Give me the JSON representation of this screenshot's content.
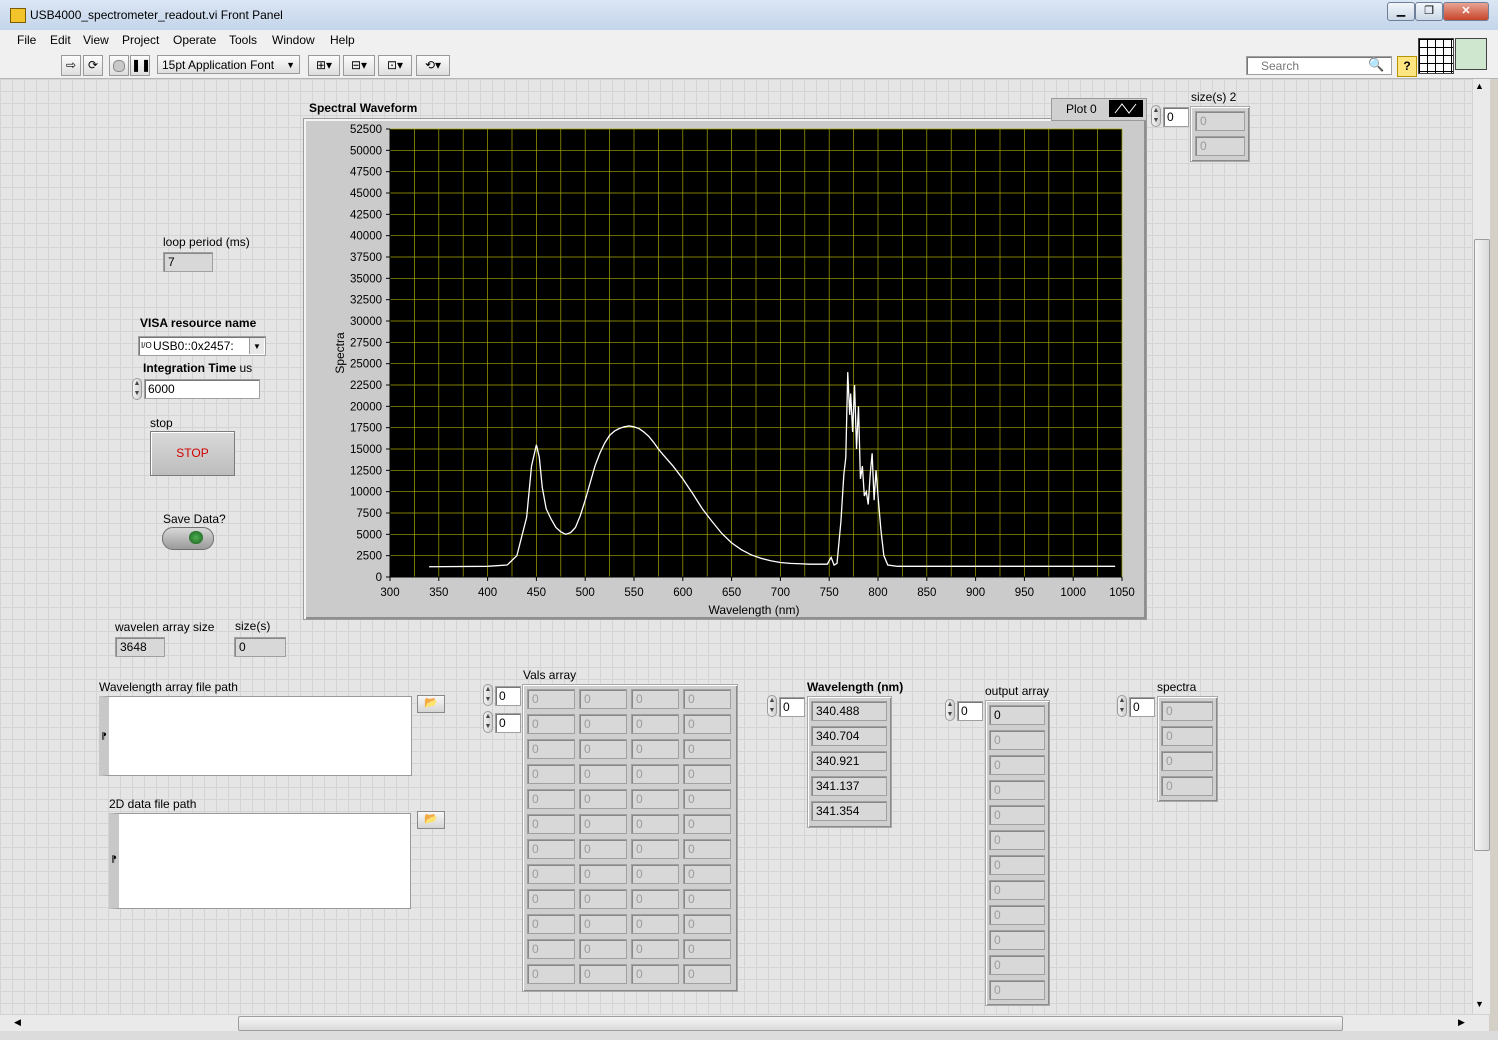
{
  "window": {
    "title": "USB4000_spectrometer_readout.vi Front Panel",
    "minimize": "▁",
    "maximize": "❐",
    "close": "✕"
  },
  "menu": [
    "File",
    "Edit",
    "View",
    "Project",
    "Operate",
    "Tools",
    "Window",
    "Help"
  ],
  "toolbar": {
    "font_select": "15pt Application Font",
    "search_placeholder": "Search"
  },
  "controls": {
    "loop_period": {
      "label": "loop period (ms)",
      "value": "7"
    },
    "visa": {
      "label": "VISA resource name",
      "value": "USB0::0x2457:",
      "prefix": "I/O"
    },
    "integration": {
      "label_bold": "Integration Time",
      "label_rest": " us",
      "value": "6000"
    },
    "stop": {
      "label": "stop",
      "button": "STOP"
    },
    "save": {
      "label": "Save Data?"
    },
    "wavelen_size": {
      "label": "wavelen array size",
      "value": "3648"
    },
    "sizes": {
      "label": "size(s)",
      "value": "0"
    },
    "wl_path": {
      "label": "Wavelength array file path"
    },
    "data_path": {
      "label": "2D data file path"
    },
    "plot_legend": {
      "label": "Plot 0"
    },
    "sizes2": {
      "label": "size(s) 2",
      "index": "0",
      "values": [
        "0",
        "0"
      ]
    },
    "vals_array": {
      "label": "Vals array",
      "index_row": "0",
      "index_col": "0",
      "cell": "0",
      "rows": 12,
      "cols": 4
    },
    "wavelength_nm": {
      "label": "Wavelength (nm)",
      "index": "0",
      "values": [
        "340.488",
        "340.704",
        "340.921",
        "341.137",
        "341.354"
      ]
    },
    "output_array": {
      "label": "output array",
      "index": "0",
      "values": [
        "0",
        "0",
        "0",
        "0",
        "0",
        "0",
        "0",
        "0",
        "0",
        "0",
        "0",
        "0"
      ]
    },
    "spectra": {
      "label": "spectra",
      "index": "0",
      "values": [
        "0",
        "0",
        "0",
        "0"
      ]
    }
  },
  "chart_data": {
    "type": "line",
    "title": "Spectral Waveform",
    "xlabel": "Wavelength (nm)",
    "ylabel": "Spectra",
    "xlim": [
      300,
      1050
    ],
    "ylim": [
      0,
      52500
    ],
    "x_ticks": [
      300,
      350,
      400,
      450,
      500,
      550,
      600,
      650,
      700,
      750,
      800,
      850,
      900,
      950,
      1000,
      1050
    ],
    "y_ticks": [
      0,
      2500,
      5000,
      7500,
      10000,
      12500,
      15000,
      17500,
      20000,
      22500,
      25000,
      27500,
      30000,
      32500,
      35000,
      37500,
      40000,
      42500,
      45000,
      47500,
      50000,
      52500
    ],
    "grid": true,
    "colors": {
      "background": "#000000",
      "grid": "#a8a800",
      "line": "#ffffff"
    },
    "series": [
      {
        "name": "Plot 0",
        "x": [
          340,
          400,
          420,
          430,
          440,
          445,
          450,
          453,
          456,
          460,
          465,
          470,
          475,
          480,
          485,
          490,
          495,
          500,
          505,
          510,
          515,
          520,
          525,
          530,
          535,
          540,
          545,
          550,
          555,
          560,
          565,
          570,
          575,
          580,
          590,
          600,
          610,
          620,
          630,
          640,
          650,
          660,
          670,
          680,
          690,
          700,
          710,
          720,
          730,
          740,
          748,
          752,
          755,
          758,
          762,
          765,
          767,
          769,
          771,
          772,
          774,
          776,
          778,
          780,
          782,
          784,
          786,
          788,
          790,
          792,
          794,
          796,
          798,
          800,
          803,
          806,
          810,
          820,
          850,
          900,
          950,
          1000,
          1043
        ],
        "y": [
          1200,
          1250,
          1400,
          2500,
          7000,
          13000,
          15500,
          14000,
          10500,
          8000,
          6800,
          5800,
          5300,
          5000,
          5200,
          5800,
          7200,
          9000,
          11000,
          13000,
          14500,
          15700,
          16600,
          17100,
          17400,
          17600,
          17700,
          17600,
          17400,
          17000,
          16500,
          15800,
          15000,
          14300,
          13000,
          11500,
          9800,
          8000,
          6500,
          5100,
          4000,
          3200,
          2600,
          2200,
          1900,
          1700,
          1600,
          1550,
          1500,
          1500,
          1500,
          2300,
          1400,
          1600,
          6500,
          12000,
          14000,
          24000,
          19000,
          21500,
          17000,
          22500,
          15000,
          20000,
          11500,
          13000,
          9500,
          10000,
          8500,
          12000,
          14500,
          9000,
          12500,
          9500,
          5500,
          2500,
          1400,
          1250,
          1250,
          1250,
          1250,
          1250,
          1250
        ]
      }
    ]
  }
}
